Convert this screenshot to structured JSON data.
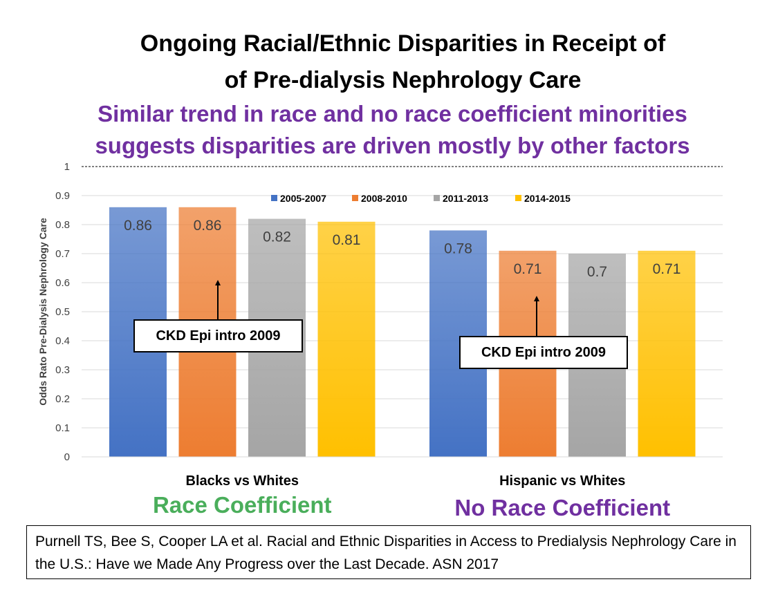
{
  "title_line1": "Ongoing Racial/Ethnic Disparities in Receipt of",
  "title_line2": "of Pre-dialysis Nephrology Care",
  "subtitle_line1": "Similar trend in race and no race coefficient minorities",
  "subtitle_line2": "suggests disparities are driven mostly by other factors",
  "colors": {
    "series": [
      "#4472c4",
      "#ed7d31",
      "#a5a5a5",
      "#ffc000"
    ],
    "green_note": "#4aae5b",
    "purple": "#7030a0"
  },
  "chart_data": {
    "type": "bar",
    "ylabel": "Odds Rato Pre-Dialysis Nephrology Care",
    "xlabel": "",
    "ylim": [
      0,
      1
    ],
    "yticks": [
      "0",
      "0.1",
      "0.2",
      "0.3",
      "0.4",
      "0.5",
      "0.6",
      "0.7",
      "0.8",
      "0.9",
      "1"
    ],
    "reference_line": 1,
    "categories": [
      "Blacks vs Whites",
      "Hispanic vs Whites"
    ],
    "category_notes": [
      "Race Coefficient",
      "No Race Coefficient"
    ],
    "series": [
      {
        "name": "2005-2007",
        "values": [
          0.86,
          0.78
        ]
      },
      {
        "name": "2008-2010",
        "values": [
          0.86,
          0.71
        ]
      },
      {
        "name": "2011-2013",
        "values": [
          0.82,
          0.7
        ]
      },
      {
        "name": "2014-2015",
        "values": [
          0.81,
          0.71
        ]
      }
    ],
    "annotations": [
      "CKD Epi intro 2009",
      "CKD Epi intro 2009"
    ],
    "legend_position": "top-center",
    "grid": true
  },
  "citation": "Purnell TS, Bee S, Cooper LA et al. Racial and Ethnic Disparities in Access to Predialysis Nephrology Care in the U.S.: Have we Made Any Progress over the Last Decade. ASN 2017"
}
